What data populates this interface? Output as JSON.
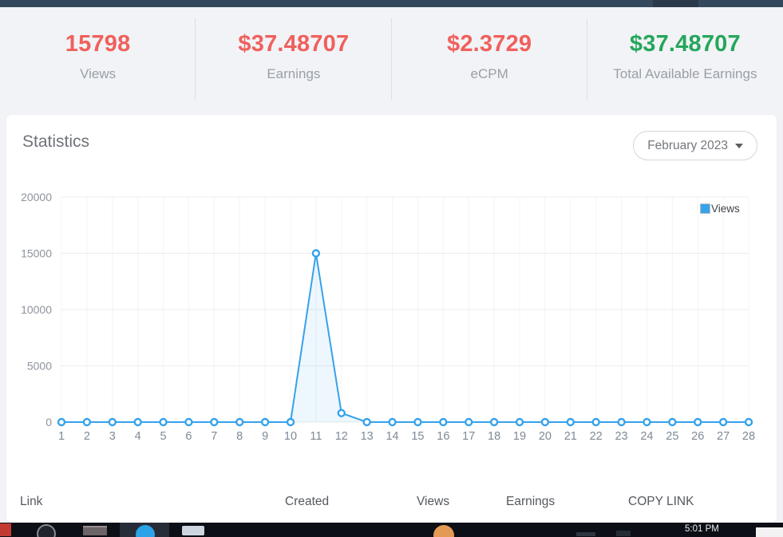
{
  "stats": {
    "items": [
      {
        "value": "15798",
        "label": "Views",
        "color": "#f0605c"
      },
      {
        "value": "$37.48707",
        "label": "Earnings",
        "color": "#f0605c"
      },
      {
        "value": "$2.3729",
        "label": "eCPM",
        "color": "#f0605c"
      },
      {
        "value": "$37.48707",
        "label": "Total Available Earnings",
        "color": "#26a65b"
      }
    ]
  },
  "card": {
    "title": "Statistics",
    "month_selector": "February 2023"
  },
  "chart_data": {
    "type": "line",
    "title": "Statistics",
    "x": [
      1,
      2,
      3,
      4,
      5,
      6,
      7,
      8,
      9,
      10,
      11,
      12,
      13,
      14,
      15,
      16,
      17,
      18,
      19,
      20,
      21,
      22,
      23,
      24,
      25,
      26,
      27,
      28
    ],
    "series": [
      {
        "name": "Views",
        "color": "#36a2eb",
        "values": [
          0,
          0,
          0,
          0,
          0,
          0,
          0,
          0,
          0,
          0,
          15000,
          798,
          0,
          0,
          0,
          0,
          0,
          0,
          0,
          0,
          0,
          0,
          0,
          0,
          0,
          0,
          0,
          0
        ]
      }
    ],
    "ylim": [
      0,
      20000
    ],
    "yticks": [
      0,
      5000,
      10000,
      15000,
      20000
    ],
    "grid": true,
    "legend_position": "top-right",
    "marker": "open-circle"
  },
  "links_table": {
    "headers": [
      "Link",
      "Created",
      "Views",
      "Earnings",
      "COPY LINK"
    ]
  },
  "taskbar": {
    "time": "5:01 PM"
  }
}
